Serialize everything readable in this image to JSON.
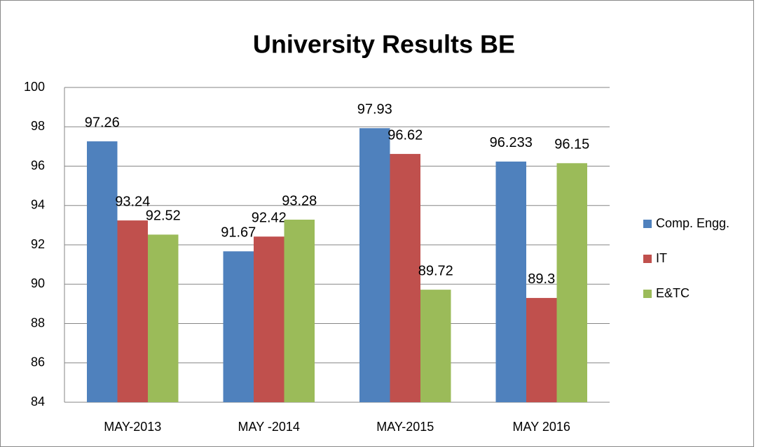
{
  "chart_data": {
    "type": "bar",
    "title": "University Results BE",
    "categories": [
      "MAY-2013",
      "MAY -2014",
      "MAY-2015",
      "MAY 2016"
    ],
    "series": [
      {
        "name": "Comp. Engg.",
        "color": "#4f81bd",
        "values": [
          97.26,
          91.67,
          97.93,
          96.233
        ]
      },
      {
        "name": "IT",
        "color": "#c0504d",
        "values": [
          93.24,
          92.42,
          96.62,
          89.3
        ]
      },
      {
        "name": "E&TC",
        "color": "#9bbb59",
        "values": [
          92.52,
          93.28,
          89.72,
          96.15
        ]
      }
    ],
    "ylim": [
      84,
      100
    ],
    "yticks": [
      84,
      86,
      88,
      90,
      92,
      94,
      96,
      98,
      100
    ],
    "grid": true,
    "legend": "right"
  }
}
